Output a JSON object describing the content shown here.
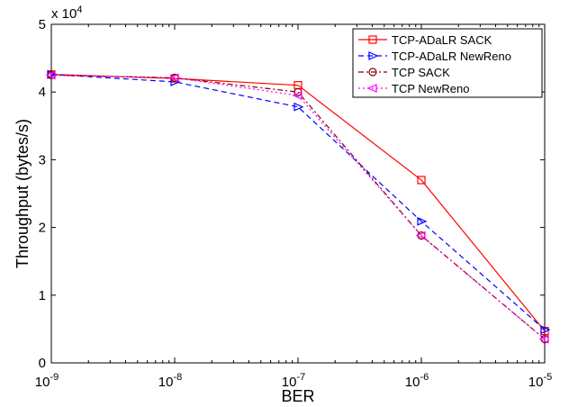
{
  "chart_data": {
    "type": "line",
    "xlabel": "BER",
    "ylabel": "Throughput (bytes/s)",
    "xscale": "log",
    "x": [
      1e-09,
      1e-08,
      1e-07,
      1e-06,
      1e-05
    ],
    "x_tick_labels": [
      {
        "base": "10",
        "exp": "-9"
      },
      {
        "base": "10",
        "exp": "-8"
      },
      {
        "base": "10",
        "exp": "-7"
      },
      {
        "base": "10",
        "exp": "-6"
      },
      {
        "base": "10",
        "exp": "-5"
      }
    ],
    "xlim": [
      1e-09,
      1e-05
    ],
    "ylim": [
      0,
      50000
    ],
    "y_ticks": [
      0,
      10000,
      20000,
      30000,
      40000,
      50000
    ],
    "y_tick_labels": [
      "0",
      "1",
      "2",
      "3",
      "4",
      "5"
    ],
    "y_multiplier": {
      "base": "x 10",
      "exp": "4"
    },
    "grid": false,
    "legend_position": "top-right",
    "series": [
      {
        "name": "TCP-ADaLR SACK",
        "values": [
          42600,
          42000,
          41000,
          27000,
          4700
        ],
        "color": "#ff0000",
        "dash": "solid",
        "marker": "square"
      },
      {
        "name": "TCP-ADaLR NewReno",
        "values": [
          42600,
          41500,
          37800,
          20900,
          4900
        ],
        "color": "#0000ff",
        "dash": "dashed",
        "marker": "triangle-right"
      },
      {
        "name": "TCP SACK",
        "values": [
          42500,
          42100,
          40000,
          18800,
          3500
        ],
        "color": "#800000",
        "dash": "dashdot",
        "marker": "circle"
      },
      {
        "name": "TCP NewReno",
        "values": [
          42500,
          42100,
          39500,
          18800,
          3500
        ],
        "color": "#ff00ff",
        "dash": "dotted",
        "marker": "triangle-left"
      }
    ]
  }
}
